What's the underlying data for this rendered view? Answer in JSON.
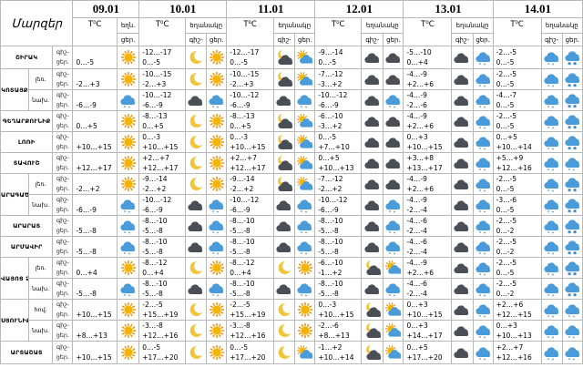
{
  "header": {
    "corner_label": "Մարզեր",
    "dates": [
      "09.01",
      "10.01",
      "11.01",
      "12.01",
      "13.01",
      "14.01"
    ],
    "temp_unit": "T⁰C",
    "weather_label": "եղանակը",
    "weather_label_short": "եղն.",
    "day_label": "ցերեկը",
    "day_label_abbr": "ցեր.",
    "night_label_abbr": "գիշ.",
    "night_label_abbr_dash": "գիշ-"
  },
  "rows": [
    {
      "region": "ՇԻՐԱԿ",
      "part": "",
      "day0_icon": "sun-icon",
      "days": [
        {
          "night": "",
          "day": "0…-5",
          "night_icon": "",
          "day_icon": "sun-icon"
        },
        {
          "night": "-12…-17",
          "day": "0…-5",
          "night_icon": "moon-icon",
          "day_icon": "sun-icon"
        },
        {
          "night": "-12…-17",
          "day": "0…-5",
          "night_icon": "moon-cloud-icon",
          "day_icon": "sun-cloud-icon"
        },
        {
          "night": "-9…-14",
          "day": "0…-5",
          "night_icon": "dark-cloud-icon",
          "day_icon": "dark-cloud-icon"
        },
        {
          "night": "-5…-10",
          "day": "0…+4",
          "night_icon": "dark-cloud-icon",
          "day_icon": "rain-cloud-icon"
        },
        {
          "night": "-2…-5",
          "day": "0…-5",
          "night_icon": "rain-cloud-icon",
          "day_icon": "snow-cloud-icon"
        }
      ]
    },
    {
      "region": "ԿՈՏԱՅՔ",
      "part": "լեռ.",
      "days": [
        {
          "night": "",
          "day": "-2…+3",
          "night_icon": "",
          "day_icon": "sun-icon"
        },
        {
          "night": "-10…-15",
          "day": "-2…+3",
          "night_icon": "moon-icon",
          "day_icon": "sun-icon"
        },
        {
          "night": "-10…-15",
          "day": "-2…+3",
          "night_icon": "moon-cloud-icon",
          "day_icon": "sun-cloud-icon"
        },
        {
          "night": "-7…-12",
          "day": "-3…+2",
          "night_icon": "dark-cloud-icon",
          "day_icon": "dark-cloud-icon"
        },
        {
          "night": "-4…-9",
          "day": "+2…+6",
          "night_icon": "dark-cloud-icon",
          "day_icon": "rain-cloud-icon"
        },
        {
          "night": "-2…-5",
          "day": "0…-5",
          "night_icon": "rain-cloud-icon",
          "day_icon": "snow-cloud-icon"
        }
      ]
    },
    {
      "region": "",
      "part": "նախ.",
      "days": [
        {
          "night": "",
          "day": "-6…-9",
          "night_icon": "",
          "day_icon": "rain-cloud-icon"
        },
        {
          "night": "-10…-12",
          "day": "-6…-9",
          "night_icon": "dark-cloud-icon",
          "day_icon": "rain-cloud-icon"
        },
        {
          "night": "-10…-12",
          "day": "-6…-9",
          "night_icon": "dark-cloud-icon",
          "day_icon": "rain-cloud-icon"
        },
        {
          "night": "-10…-12",
          "day": "-6…-9",
          "night_icon": "dark-cloud-icon",
          "day_icon": "rain-cloud-icon"
        },
        {
          "night": "-4…-9",
          "day": "-2…-6",
          "night_icon": "dark-cloud-icon",
          "day_icon": "rain-cloud-icon"
        },
        {
          "night": "-4…-7",
          "day": "0…-5",
          "night_icon": "rain-cloud-icon",
          "day_icon": "snow-cloud-icon"
        }
      ]
    },
    {
      "region": "ԳԵՂԱՐՔՈՒՆԻՔ",
      "part": "",
      "days": [
        {
          "night": "",
          "day": "0…+5",
          "night_icon": "",
          "day_icon": "sun-icon"
        },
        {
          "night": "-8…-13",
          "day": "0…+5",
          "night_icon": "moon-icon",
          "day_icon": "sun-icon"
        },
        {
          "night": "-8…-13",
          "day": "0…+5",
          "night_icon": "moon-cloud-icon",
          "day_icon": "sun-cloud-icon"
        },
        {
          "night": "-6…-10",
          "day": "-3…+2",
          "night_icon": "dark-cloud-icon",
          "day_icon": "dark-cloud-icon"
        },
        {
          "night": "-4…-9",
          "day": "+2…+6",
          "night_icon": "dark-cloud-icon",
          "day_icon": "rain-cloud-icon"
        },
        {
          "night": "-2…-5",
          "day": "0…-5",
          "night_icon": "rain-cloud-icon",
          "day_icon": "snow-cloud-icon"
        }
      ]
    },
    {
      "region": "ԼՈՌԻ",
      "part": "",
      "days": [
        {
          "night": "",
          "day": "+10…+15",
          "night_icon": "",
          "day_icon": "sun-icon"
        },
        {
          "night": "0…-3",
          "day": "+10…+15",
          "night_icon": "moon-icon",
          "day_icon": "sun-icon"
        },
        {
          "night": "0…-3",
          "day": "+10…+15",
          "night_icon": "moon-cloud-icon",
          "day_icon": "sun-cloud-icon"
        },
        {
          "night": "0…-5",
          "day": "+7…+10",
          "night_icon": "dark-cloud-icon",
          "day_icon": "dark-cloud-icon"
        },
        {
          "night": "0…+3",
          "day": "+10…+15",
          "night_icon": "dark-cloud-icon",
          "day_icon": "rain-cloud-icon"
        },
        {
          "night": "0…+5",
          "day": "+10…+14",
          "night_icon": "rain-cloud-icon",
          "day_icon": "snow-cloud-icon"
        }
      ]
    },
    {
      "region": "ՏԱՎՈՒՇ",
      "part": "",
      "days": [
        {
          "night": "",
          "day": "+12…+17",
          "night_icon": "",
          "day_icon": "sun-icon"
        },
        {
          "night": "+2…+7",
          "day": "+12…+17",
          "night_icon": "moon-icon",
          "day_icon": "sun-icon"
        },
        {
          "night": "+2…+7",
          "day": "+12…+17",
          "night_icon": "moon-cloud-icon",
          "day_icon": "sun-cloud-icon"
        },
        {
          "night": "0…+5",
          "day": "+10…+13",
          "night_icon": "dark-cloud-icon",
          "day_icon": "dark-cloud-icon"
        },
        {
          "night": "+3…+8",
          "day": "+13…+17",
          "night_icon": "dark-cloud-icon",
          "day_icon": "rain-cloud-icon"
        },
        {
          "night": "+5…+9",
          "day": "+12…+16",
          "night_icon": "rain-cloud-icon",
          "day_icon": "rain-cloud-icon"
        }
      ]
    },
    {
      "region": "ԱՐԱԳԱԾՈՏՆ",
      "part": "լեռ.",
      "days": [
        {
          "night": "",
          "day": "-2…+2",
          "night_icon": "",
          "day_icon": "sun-icon"
        },
        {
          "night": "-9…-14",
          "day": "-2…+2",
          "night_icon": "moon-icon",
          "day_icon": "sun-icon"
        },
        {
          "night": "-9…-14",
          "day": "-2…+2",
          "night_icon": "moon-cloud-icon",
          "day_icon": "sun-cloud-icon"
        },
        {
          "night": "-7…-12",
          "day": "-2…+2",
          "night_icon": "dark-cloud-icon",
          "day_icon": "dark-cloud-icon"
        },
        {
          "night": "-4…-9",
          "day": "+2…+6",
          "night_icon": "dark-cloud-icon",
          "day_icon": "rain-cloud-icon"
        },
        {
          "night": "-2…-5",
          "day": "0…-5",
          "night_icon": "rain-cloud-icon",
          "day_icon": "snow-cloud-icon"
        }
      ]
    },
    {
      "region": "",
      "part": "նախ.",
      "days": [
        {
          "night": "",
          "day": "-6…-9",
          "night_icon": "",
          "day_icon": "rain-cloud-icon"
        },
        {
          "night": "-10…-12",
          "day": "-6…-9",
          "night_icon": "dark-cloud-icon",
          "day_icon": "rain-cloud-icon"
        },
        {
          "night": "-10…-12",
          "day": "-6…-9",
          "night_icon": "dark-cloud-icon",
          "day_icon": "rain-cloud-icon"
        },
        {
          "night": "-10…-12",
          "day": "-6…-9",
          "night_icon": "dark-cloud-icon",
          "day_icon": "rain-cloud-icon"
        },
        {
          "night": "-4…-9",
          "day": "-2…-4",
          "night_icon": "dark-cloud-icon",
          "day_icon": "rain-cloud-icon"
        },
        {
          "night": "-3…-6",
          "day": "0…-5",
          "night_icon": "rain-cloud-icon",
          "day_icon": "snow-cloud-icon"
        }
      ]
    },
    {
      "region": "ԱՐԱՐԱՏ",
      "part": "",
      "days": [
        {
          "night": "",
          "day": "-5…-8",
          "night_icon": "",
          "day_icon": "rain-cloud-icon"
        },
        {
          "night": "-8…-10",
          "day": "-5…-8",
          "night_icon": "dark-cloud-icon",
          "day_icon": "rain-cloud-icon"
        },
        {
          "night": "-8…-10",
          "day": "-5…-8",
          "night_icon": "dark-cloud-icon",
          "day_icon": "rain-cloud-icon"
        },
        {
          "night": "-8…-10",
          "day": "-5…-8",
          "night_icon": "dark-cloud-icon",
          "day_icon": "rain-cloud-icon"
        },
        {
          "night": "-4…-6",
          "day": "-2…-4",
          "night_icon": "dark-cloud-icon",
          "day_icon": "rain-cloud-icon"
        },
        {
          "night": "-2…-5",
          "day": "0…-2",
          "night_icon": "rain-cloud-icon",
          "day_icon": "snow-cloud-icon"
        }
      ]
    },
    {
      "region": "ԱՐՄԱՎԻՐ",
      "part": "",
      "days": [
        {
          "night": "",
          "day": "-5…-8",
          "night_icon": "",
          "day_icon": "rain-cloud-icon"
        },
        {
          "night": "-8…-10",
          "day": "-5…-8",
          "night_icon": "dark-cloud-icon",
          "day_icon": "rain-cloud-icon"
        },
        {
          "night": "-8…-10",
          "day": "-5…-8",
          "night_icon": "dark-cloud-icon",
          "day_icon": "rain-cloud-icon"
        },
        {
          "night": "-8…-10",
          "day": "-5…-8",
          "night_icon": "dark-cloud-icon",
          "day_icon": "rain-cloud-icon"
        },
        {
          "night": "-4…-6",
          "day": "-2…-4",
          "night_icon": "dark-cloud-icon",
          "day_icon": "rain-cloud-icon"
        },
        {
          "night": "-2…-5",
          "day": "0…-2",
          "night_icon": "rain-cloud-icon",
          "day_icon": "snow-cloud-icon"
        }
      ]
    },
    {
      "region": "ՎԱՅՈՑ ՁՈՐ",
      "part": "լեռ.",
      "days": [
        {
          "night": "",
          "day": "0…+4",
          "night_icon": "",
          "day_icon": "sun-icon"
        },
        {
          "night": "-8…-12",
          "day": "0…+4",
          "night_icon": "moon-icon",
          "day_icon": "sun-icon"
        },
        {
          "night": "-8…-12",
          "day": "0…+4",
          "night_icon": "moon-icon",
          "day_icon": "sun-icon"
        },
        {
          "night": "-6…-10",
          "day": "-1…+2",
          "night_icon": "moon-cloud-icon",
          "day_icon": "sun-cloud-icon"
        },
        {
          "night": "-4…-9",
          "day": "+2…+6",
          "night_icon": "dark-cloud-icon",
          "day_icon": "rain-cloud-icon"
        },
        {
          "night": "-2…-5",
          "day": "0…-5",
          "night_icon": "rain-cloud-icon",
          "day_icon": "snow-cloud-icon"
        }
      ]
    },
    {
      "region": "",
      "part": "նախ.",
      "days": [
        {
          "night": "",
          "day": "-5…-8",
          "night_icon": "",
          "day_icon": "rain-cloud-icon"
        },
        {
          "night": "-8…-10",
          "day": "-5…-8",
          "night_icon": "dark-cloud-icon",
          "day_icon": "rain-cloud-icon"
        },
        {
          "night": "-8…-10",
          "day": "-5…-8",
          "night_icon": "dark-cloud-icon",
          "day_icon": "rain-cloud-icon"
        },
        {
          "night": "-8…-10",
          "day": "-5…-8",
          "night_icon": "dark-cloud-icon",
          "day_icon": "rain-cloud-icon"
        },
        {
          "night": "-4…-6",
          "day": "-2…-4",
          "night_icon": "dark-cloud-icon",
          "day_icon": "rain-cloud-icon"
        },
        {
          "night": "-2…-5",
          "day": "0…-2",
          "night_icon": "rain-cloud-icon",
          "day_icon": "snow-cloud-icon"
        }
      ]
    },
    {
      "region": "ՍՅՈՒՆԻՔ",
      "part": "հով.",
      "days": [
        {
          "night": "",
          "day": "+10…+15",
          "night_icon": "",
          "day_icon": "sun-icon"
        },
        {
          "night": "-2…-5",
          "day": "+15…+19",
          "night_icon": "moon-icon",
          "day_icon": "sun-icon"
        },
        {
          "night": "-2…-5",
          "day": "+15…+19",
          "night_icon": "moon-icon",
          "day_icon": "sun-icon"
        },
        {
          "night": "0…-3",
          "day": "+10…+15",
          "night_icon": "moon-cloud-icon",
          "day_icon": "sun-cloud-icon"
        },
        {
          "night": "0…+3",
          "day": "+10…+15",
          "night_icon": "dark-cloud-icon",
          "day_icon": "rain-cloud-icon"
        },
        {
          "night": "+2…+6",
          "day": "+12…+15",
          "night_icon": "rain-cloud-icon",
          "day_icon": "rain-cloud-icon"
        }
      ]
    },
    {
      "region": "",
      "part": "նախ.",
      "days": [
        {
          "night": "",
          "day": "+8…+13",
          "night_icon": "",
          "day_icon": "sun-icon"
        },
        {
          "night": "-3…-8",
          "day": "+12…+16",
          "night_icon": "moon-icon",
          "day_icon": "sun-icon"
        },
        {
          "night": "-3…-8",
          "day": "+12…+16",
          "night_icon": "moon-icon",
          "day_icon": "sun-icon"
        },
        {
          "night": "-2…-6",
          "day": "+8…+13",
          "night_icon": "moon-cloud-icon",
          "day_icon": "sun-cloud-icon"
        },
        {
          "night": "0…+3",
          "day": "+14…+17",
          "night_icon": "dark-cloud-icon",
          "day_icon": "rain-cloud-icon"
        },
        {
          "night": "0…+3",
          "day": "+10…+13",
          "night_icon": "rain-cloud-icon",
          "day_icon": "rain-cloud-icon"
        }
      ]
    },
    {
      "region": "ԱՐՏԱՇԱՏ",
      "part": "",
      "days": [
        {
          "night": "",
          "day": "+10…+15",
          "night_icon": "",
          "day_icon": "sun-icon"
        },
        {
          "night": "0…-5",
          "day": "+17…+20",
          "night_icon": "moon-icon",
          "day_icon": "sun-icon"
        },
        {
          "night": "0…-5",
          "day": "+17…+20",
          "night_icon": "moon-icon",
          "day_icon": "sun-cloud-icon"
        },
        {
          "night": "-1…+2",
          "day": "+10…+14",
          "night_icon": "moon-cloud-icon",
          "day_icon": "sun-cloud-icon"
        },
        {
          "night": "0…+5",
          "day": "+17…+20",
          "night_icon": "dark-cloud-icon",
          "day_icon": "rain-cloud-icon"
        },
        {
          "night": "+2…+7",
          "day": "+12…+16",
          "night_icon": "rain-cloud-icon",
          "day_icon": "rain-cloud-icon"
        }
      ]
    }
  ],
  "colors": {
    "sun": "#f4b400",
    "sun_ray": "#f08a00",
    "moon": "#f2c43a",
    "dark_cloud": "#4a4f57",
    "rain_cloud": "#4a9bd9",
    "snow": "#1f6fb5",
    "grid": "#b8b8b8"
  }
}
